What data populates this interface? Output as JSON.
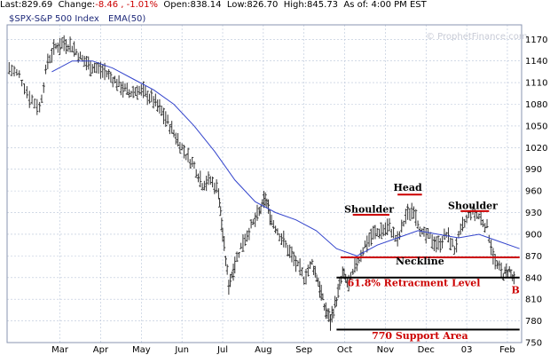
{
  "header": {
    "last_label": "Last:",
    "last_value": "829.69",
    "change_label": "Change:",
    "change_value": "-8.46 , -1.01%",
    "open_label": "Open:",
    "open_value": "838.14",
    "low_label": "Low:",
    "low_value": "826.70",
    "high_label": "High:",
    "high_value": "845.73",
    "asof_label": "As of:",
    "asof_value": "4:00 PM EST"
  },
  "legend": {
    "series_label": "$SPX-S&P 500 Index",
    "ema_label": "EMA(50)"
  },
  "watermark": "© ProphetFinance.com",
  "colors": {
    "price": "#333333",
    "ema": "#3344cc",
    "annotation": "#cc0000",
    "grid": "#b8c4d8",
    "plot_border": "#8a96b0"
  },
  "chart_data": {
    "type": "ohlc-bar-with-line",
    "x_tick_labels": [
      "Mar",
      "Apr",
      "May",
      "Jun",
      "Jul",
      "Aug",
      "Sep",
      "Oct",
      "Nov",
      "Dec",
      "03",
      "Feb"
    ],
    "x_tick_positions": [
      0.0,
      1.0,
      2.0,
      3.0,
      4.0,
      5.0,
      6.0,
      7.0,
      8.0,
      9.0,
      10.0,
      11.0
    ],
    "ylim": [
      750,
      1190
    ],
    "y_ticks": [
      750,
      780,
      810,
      840,
      870,
      900,
      930,
      960,
      990,
      1020,
      1050,
      1080,
      1110,
      1140,
      1170
    ],
    "xlim": [
      -1.3,
      11.35
    ],
    "grid": true,
    "price_series": {
      "name": "$SPX-S&P 500 Index",
      "points": [
        [
          -1.25,
          1130
        ],
        [
          -1.0,
          1120
        ],
        [
          -0.75,
          1090
        ],
        [
          -0.5,
          1075
        ],
        [
          -0.3,
          1140
        ],
        [
          -0.1,
          1160
        ],
        [
          0.1,
          1165
        ],
        [
          0.3,
          1160
        ],
        [
          0.5,
          1145
        ],
        [
          0.7,
          1135
        ],
        [
          0.9,
          1130
        ],
        [
          1.1,
          1125
        ],
        [
          1.3,
          1115
        ],
        [
          1.5,
          1105
        ],
        [
          1.7,
          1095
        ],
        [
          1.9,
          1100
        ],
        [
          2.1,
          1095
        ],
        [
          2.3,
          1085
        ],
        [
          2.5,
          1070
        ],
        [
          2.7,
          1050
        ],
        [
          2.9,
          1030
        ],
        [
          3.1,
          1010
        ],
        [
          3.3,
          995
        ],
        [
          3.5,
          970
        ],
        [
          3.7,
          975
        ],
        [
          3.9,
          960
        ],
        [
          4.0,
          900
        ],
        [
          4.15,
          830
        ],
        [
          4.3,
          860
        ],
        [
          4.5,
          890
        ],
        [
          4.7,
          910
        ],
        [
          4.9,
          930
        ],
        [
          5.05,
          950
        ],
        [
          5.2,
          920
        ],
        [
          5.4,
          900
        ],
        [
          5.6,
          880
        ],
        [
          5.8,
          860
        ],
        [
          6.0,
          840
        ],
        [
          6.2,
          860
        ],
        [
          6.35,
          835
        ],
        [
          6.5,
          800
        ],
        [
          6.65,
          780
        ],
        [
          6.8,
          810
        ],
        [
          6.95,
          845
        ],
        [
          7.1,
          830
        ],
        [
          7.3,
          860
        ],
        [
          7.5,
          885
        ],
        [
          7.7,
          900
        ],
        [
          7.9,
          905
        ],
        [
          8.1,
          910
        ],
        [
          8.3,
          890
        ],
        [
          8.5,
          925
        ],
        [
          8.7,
          935
        ],
        [
          8.9,
          900
        ],
        [
          9.1,
          895
        ],
        [
          9.3,
          885
        ],
        [
          9.5,
          900
        ],
        [
          9.7,
          880
        ],
        [
          9.9,
          910
        ],
        [
          10.1,
          930
        ],
        [
          10.3,
          925
        ],
        [
          10.5,
          910
        ],
        [
          10.7,
          860
        ],
        [
          10.9,
          845
        ],
        [
          11.05,
          850
        ],
        [
          11.2,
          830
        ]
      ]
    },
    "ema_series": {
      "name": "EMA(50)",
      "points": [
        [
          -0.2,
          1125
        ],
        [
          0.3,
          1140
        ],
        [
          0.8,
          1140
        ],
        [
          1.3,
          1130
        ],
        [
          1.8,
          1115
        ],
        [
          2.3,
          1100
        ],
        [
          2.8,
          1080
        ],
        [
          3.3,
          1050
        ],
        [
          3.8,
          1015
        ],
        [
          4.3,
          975
        ],
        [
          4.8,
          945
        ],
        [
          5.3,
          930
        ],
        [
          5.8,
          920
        ],
        [
          6.3,
          905
        ],
        [
          6.8,
          880
        ],
        [
          7.3,
          870
        ],
        [
          7.8,
          885
        ],
        [
          8.3,
          895
        ],
        [
          8.8,
          905
        ],
        [
          9.3,
          900
        ],
        [
          9.8,
          895
        ],
        [
          10.3,
          900
        ],
        [
          10.8,
          890
        ],
        [
          11.3,
          880
        ]
      ]
    },
    "annotations": [
      {
        "label": "Shoulder",
        "x": 7.6,
        "y": 930,
        "line": [
          7.2,
          8.1,
          927
        ]
      },
      {
        "label": "Head",
        "x": 8.55,
        "y": 960,
        "line": [
          8.3,
          8.9,
          955
        ]
      },
      {
        "label": "Shoulder",
        "x": 10.15,
        "y": 935,
        "line": [
          9.85,
          10.55,
          932
        ]
      },
      {
        "label": "Neckline",
        "x": 8.85,
        "y": 858,
        "line": [
          6.9,
          11.3,
          868
        ]
      },
      {
        "label": "61.8% Retracment Level",
        "x": 8.7,
        "y": 828,
        "line": [
          6.8,
          11.3,
          840
        ]
      },
      {
        "label": "770 Support Area",
        "x": 8.85,
        "y": 755,
        "line": [
          6.8,
          11.3,
          768
        ]
      },
      {
        "label": "B",
        "x": 11.2,
        "y": 818,
        "line": null
      }
    ]
  }
}
